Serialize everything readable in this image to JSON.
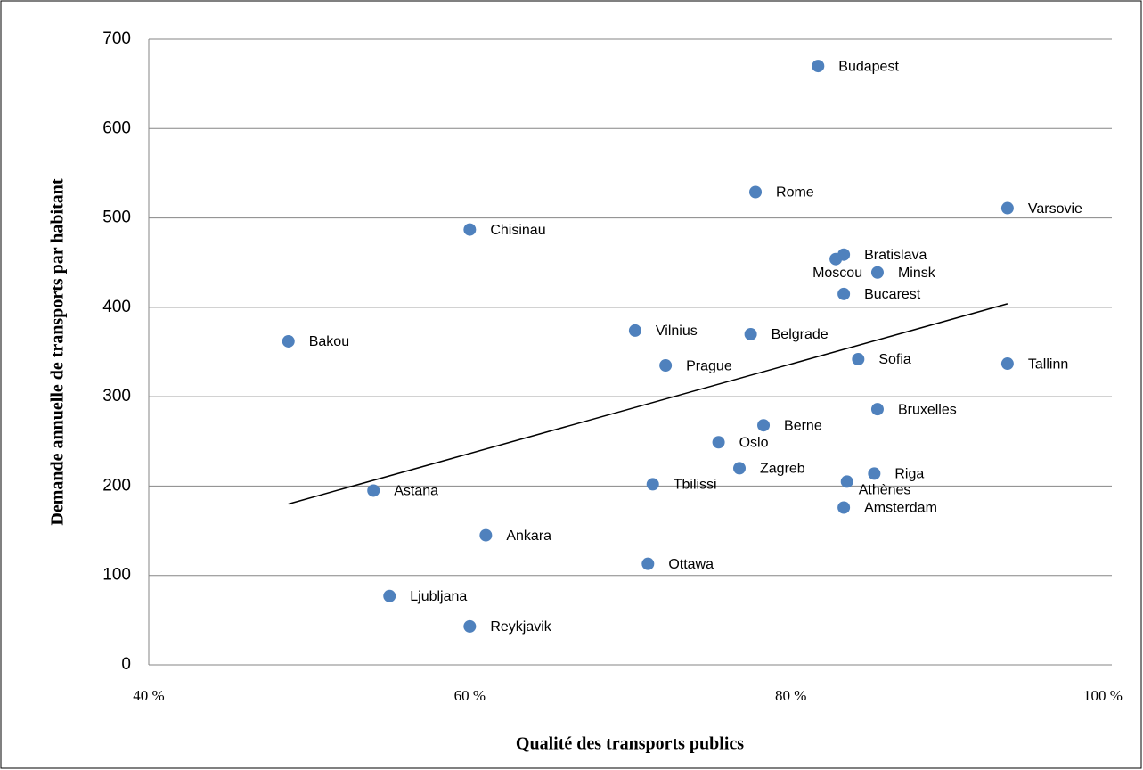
{
  "chart_data": {
    "type": "scatter",
    "xlabel": "Qualité des transports publics",
    "ylabel": "Demande annuelle de transports par habitant",
    "xlim": [
      40,
      100
    ],
    "ylim": [
      0,
      700
    ],
    "xticks": [
      {
        "value": 40,
        "label": "40 %"
      },
      {
        "value": 60,
        "label": "60 %"
      },
      {
        "value": 80,
        "label": "80 %"
      },
      {
        "value": 100,
        "label": "100 %"
      }
    ],
    "yticks": [
      0,
      100,
      200,
      300,
      400,
      500,
      600,
      700
    ],
    "grid": true,
    "color": "#4f81bd",
    "labels": [
      "Budapest",
      "Rome",
      "Varsovie",
      "Chisinau",
      "Bratislava",
      "Moscou",
      "Minsk",
      "Bucarest",
      "Bakou",
      "Vilnius",
      "Belgrade",
      "Prague",
      "Sofia",
      "Tallinn",
      "Bruxelles",
      "Berne",
      "Oslo",
      "Zagreb",
      "Riga",
      "Athènes",
      "Tbilissi",
      "Astana",
      "Amsterdam",
      "Ankara",
      "Ottawa",
      "Ljubljana",
      "Reykjavik"
    ],
    "x": [
      81.7,
      77.8,
      93.5,
      60.0,
      83.3,
      82.8,
      85.4,
      83.3,
      48.7,
      70.3,
      77.5,
      72.2,
      84.2,
      93.5,
      85.4,
      78.3,
      75.5,
      76.8,
      85.2,
      83.5,
      71.4,
      54.0,
      83.3,
      61.0,
      71.1,
      55.0,
      60.0
    ],
    "y": [
      670,
      529,
      511,
      487,
      459,
      454,
      439,
      415,
      362,
      374,
      370,
      335,
      342,
      337,
      286,
      268,
      249,
      220,
      214,
      205,
      202,
      195,
      176,
      145,
      113,
      77,
      43
    ],
    "trendline": {
      "x": [
        48.7,
        93.5
      ],
      "y": [
        180,
        404
      ],
      "color": "#000000"
    }
  }
}
